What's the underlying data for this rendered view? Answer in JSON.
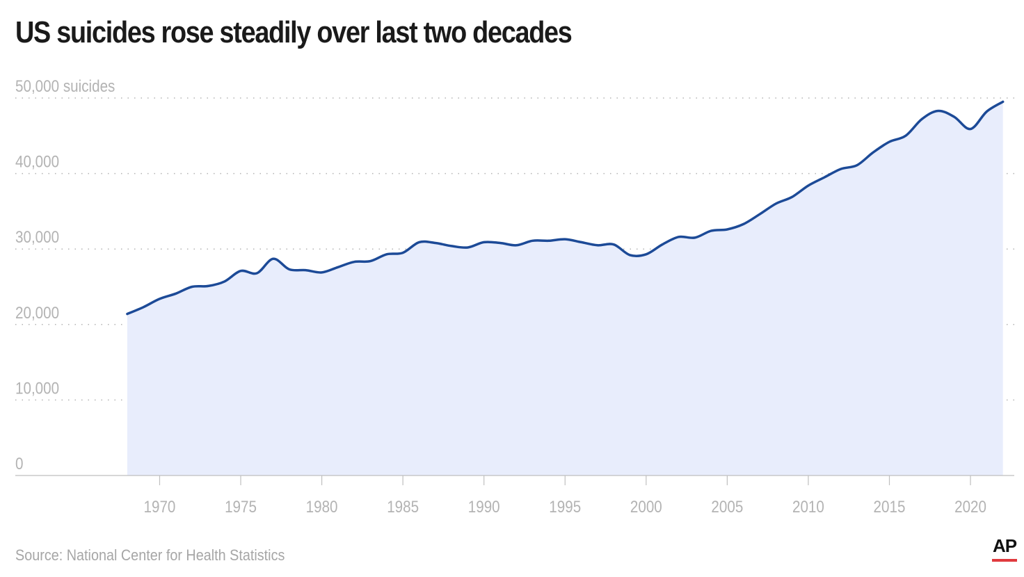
{
  "header": {
    "title": "US suicides rose steadily over last two decades"
  },
  "footer": {
    "source": "Source: National Center for Health Statistics",
    "logo": "AP",
    "logo_accent": "#e03a3e"
  },
  "colors": {
    "line": "#1c4a97",
    "fill": "#e8edfc",
    "grid": "#b3b3b3",
    "axis": "#bfbfbf"
  },
  "chart_data": {
    "type": "area",
    "title": "US suicides rose steadily over last two decades",
    "ylabel": "",
    "xlabel": "",
    "ylim": [
      0,
      50000
    ],
    "xlim": [
      1961.1,
      2022.7
    ],
    "y_ticks": [
      {
        "value": 0,
        "label": "0"
      },
      {
        "value": 10000,
        "label": "10,000"
      },
      {
        "value": 20000,
        "label": "20,000"
      },
      {
        "value": 30000,
        "label": "30,000"
      },
      {
        "value": 40000,
        "label": "40,000"
      },
      {
        "value": 50000,
        "label": "50,000 suicides"
      }
    ],
    "x_ticks": [
      {
        "value": 1970,
        "label": "1970"
      },
      {
        "value": 1975,
        "label": "1975"
      },
      {
        "value": 1980,
        "label": "1980"
      },
      {
        "value": 1985,
        "label": "1985"
      },
      {
        "value": 1990,
        "label": "1990"
      },
      {
        "value": 1995,
        "label": "1995"
      },
      {
        "value": 2000,
        "label": "2000"
      },
      {
        "value": 2005,
        "label": "2005"
      },
      {
        "value": 2010,
        "label": "2010"
      },
      {
        "value": 2015,
        "label": "2015"
      },
      {
        "value": 2020,
        "label": "2020"
      }
    ],
    "grid": true,
    "legend": "none",
    "x": [
      1968,
      1969,
      1970,
      1971,
      1972,
      1973,
      1974,
      1975,
      1976,
      1977,
      1978,
      1979,
      1980,
      1981,
      1982,
      1983,
      1984,
      1985,
      1986,
      1987,
      1988,
      1989,
      1990,
      1991,
      1992,
      1993,
      1994,
      1995,
      1996,
      1997,
      1998,
      1999,
      2000,
      2001,
      2002,
      2003,
      2004,
      2005,
      2006,
      2007,
      2008,
      2009,
      2010,
      2011,
      2012,
      2013,
      2014,
      2015,
      2016,
      2017,
      2018,
      2019,
      2020,
      2021,
      2022
    ],
    "series": [
      {
        "values": [
          21400,
          22300,
          23400,
          24100,
          25000,
          25100,
          25700,
          27100,
          26800,
          28700,
          27300,
          27200,
          26900,
          27600,
          28300,
          28400,
          29300,
          29500,
          30900,
          30800,
          30400,
          30200,
          30900,
          30800,
          30500,
          31100,
          31100,
          31300,
          30900,
          30500,
          30600,
          29200,
          29300,
          30600,
          31600,
          31500,
          32400,
          32600,
          33300,
          34600,
          36000,
          36900,
          38400,
          39500,
          40600,
          41100,
          42800,
          44200,
          45000,
          47200,
          48300,
          47500,
          45900,
          48200,
          49500
        ]
      }
    ]
  }
}
